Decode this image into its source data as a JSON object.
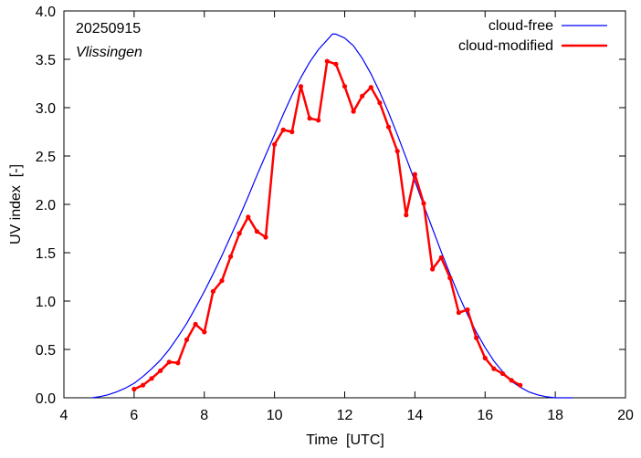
{
  "chart_data": {
    "type": "line",
    "annotations": {
      "date": "20250915",
      "location": "Vlissingen"
    },
    "xlabel": "Time  [UTC]",
    "ylabel": "UV index  [-]",
    "xlim": [
      4,
      20
    ],
    "ylim": [
      0,
      4.0
    ],
    "xticks": [
      {
        "value": 4,
        "label": "4"
      },
      {
        "value": 6,
        "label": "6"
      },
      {
        "value": 8,
        "label": "8"
      },
      {
        "value": 10,
        "label": "10"
      },
      {
        "value": 12,
        "label": "12"
      },
      {
        "value": 14,
        "label": "14"
      },
      {
        "value": 16,
        "label": "16"
      },
      {
        "value": 18,
        "label": "18"
      },
      {
        "value": 20,
        "label": "20"
      }
    ],
    "yticks": [
      {
        "value": 0.0,
        "label": "0.0"
      },
      {
        "value": 0.5,
        "label": "0.5"
      },
      {
        "value": 1.0,
        "label": "1.0"
      },
      {
        "value": 1.5,
        "label": "1.5"
      },
      {
        "value": 2.0,
        "label": "2.0"
      },
      {
        "value": 2.5,
        "label": "2.5"
      },
      {
        "value": 3.0,
        "label": "3.0"
      },
      {
        "value": 3.5,
        "label": "3.5"
      },
      {
        "value": 4.0,
        "label": "4.0"
      }
    ],
    "grid": false,
    "legend_position": "top-right",
    "series": [
      {
        "name": "cloud-free",
        "color": "#0000ff",
        "style": "line",
        "x": [
          4.8,
          5.0,
          5.25,
          5.5,
          5.75,
          6.0,
          6.25,
          6.5,
          6.75,
          7.0,
          7.25,
          7.5,
          7.75,
          8.0,
          8.25,
          8.5,
          8.75,
          9.0,
          9.25,
          9.5,
          9.75,
          10.0,
          10.25,
          10.5,
          10.75,
          11.0,
          11.25,
          11.5,
          11.65,
          11.75,
          12.0,
          12.25,
          12.5,
          12.75,
          13.0,
          13.25,
          13.5,
          13.75,
          14.0,
          14.25,
          14.5,
          14.75,
          15.0,
          15.25,
          15.5,
          15.75,
          16.0,
          16.25,
          16.5,
          16.75,
          17.0,
          17.25,
          17.5,
          17.75,
          18.0,
          18.25,
          18.5
        ],
        "y": [
          0.0,
          0.01,
          0.03,
          0.06,
          0.1,
          0.15,
          0.22,
          0.3,
          0.39,
          0.5,
          0.63,
          0.77,
          0.93,
          1.1,
          1.28,
          1.47,
          1.67,
          1.87,
          2.08,
          2.3,
          2.51,
          2.72,
          2.93,
          3.13,
          3.31,
          3.47,
          3.6,
          3.7,
          3.76,
          3.76,
          3.72,
          3.64,
          3.51,
          3.35,
          3.16,
          2.95,
          2.72,
          2.48,
          2.24,
          1.99,
          1.75,
          1.51,
          1.28,
          1.06,
          0.86,
          0.68,
          0.52,
          0.38,
          0.27,
          0.17,
          0.11,
          0.06,
          0.03,
          0.01,
          0.0,
          0.0,
          0.0
        ]
      },
      {
        "name": "cloud-modified",
        "color": "#ff0000",
        "style": "line-points",
        "x": [
          6.0,
          6.25,
          6.5,
          6.75,
          7.0,
          7.25,
          7.5,
          7.75,
          8.0,
          8.25,
          8.5,
          8.75,
          9.0,
          9.25,
          9.5,
          9.75,
          10.0,
          10.25,
          10.5,
          10.75,
          11.0,
          11.25,
          11.5,
          11.75,
          12.0,
          12.25,
          12.5,
          12.75,
          13.0,
          13.25,
          13.5,
          13.75,
          14.0,
          14.25,
          14.5,
          14.75,
          15.0,
          15.25,
          15.5,
          15.75,
          16.0,
          16.25,
          16.5,
          16.75,
          17.0
        ],
        "y": [
          0.09,
          0.13,
          0.2,
          0.28,
          0.37,
          0.36,
          0.6,
          0.76,
          0.68,
          1.1,
          1.21,
          1.46,
          1.7,
          1.87,
          1.72,
          1.66,
          2.62,
          2.77,
          2.75,
          3.22,
          2.89,
          2.87,
          3.48,
          3.45,
          3.22,
          2.96,
          3.12,
          3.21,
          3.05,
          2.8,
          2.55,
          1.89,
          2.31,
          2.01,
          1.33,
          1.45,
          1.24,
          0.88,
          0.91,
          0.62,
          0.41,
          0.3,
          0.25,
          0.18,
          0.13
        ]
      }
    ]
  }
}
